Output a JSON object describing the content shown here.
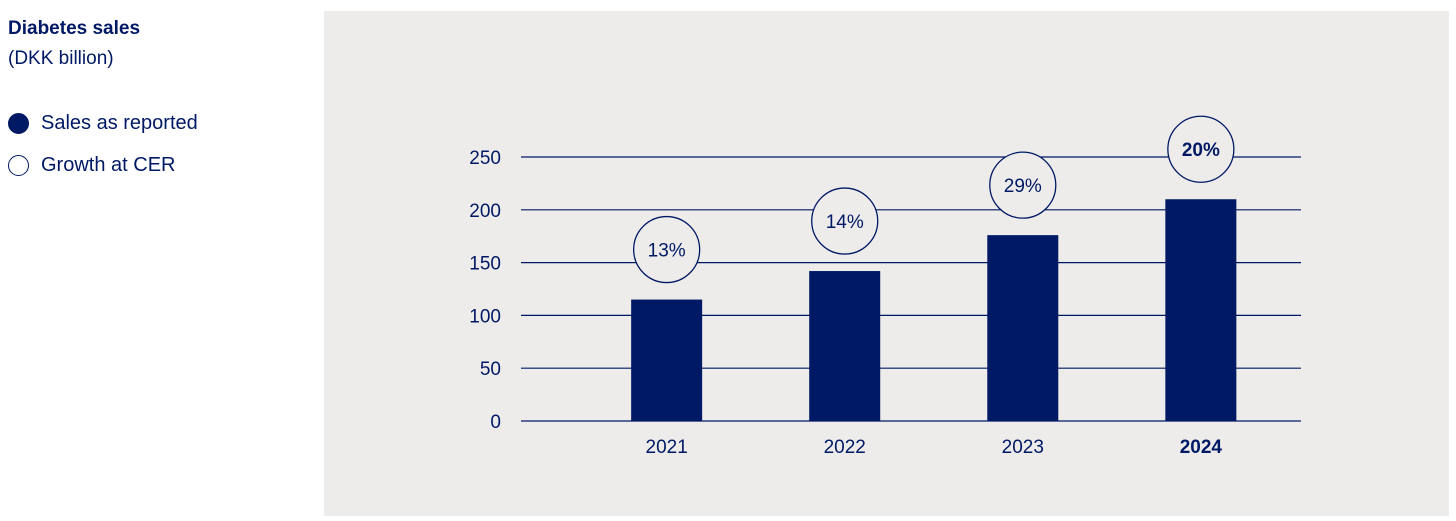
{
  "legend": {
    "title": "Diabetes sales",
    "subtitle": "(DKK billion)",
    "items": [
      {
        "label": "Sales as reported",
        "marker": "filled-circle"
      },
      {
        "label": "Growth at CER",
        "marker": "hollow-circle"
      }
    ]
  },
  "colors": {
    "bar": "#001965",
    "text": "#001965",
    "panel_background": "#eeecea",
    "bubble_fill": "#eeecea"
  },
  "chart_data": {
    "type": "bar",
    "categories": [
      "2021",
      "2022",
      "2023",
      "2024"
    ],
    "highlight_category": "2024",
    "series": [
      {
        "name": "Sales as reported",
        "values": [
          115,
          142,
          176,
          210
        ]
      },
      {
        "name": "Growth at CER",
        "labels": [
          "13%",
          "14%",
          "29%",
          "20%"
        ]
      }
    ],
    "y_ticks": [
      0,
      50,
      100,
      150,
      200,
      250
    ],
    "ylim": [
      0,
      250
    ],
    "grid": true,
    "legend_position": "top-left, outside chart",
    "title": "Diabetes sales",
    "ylabel": "(DKK billion)",
    "xlabel": ""
  }
}
